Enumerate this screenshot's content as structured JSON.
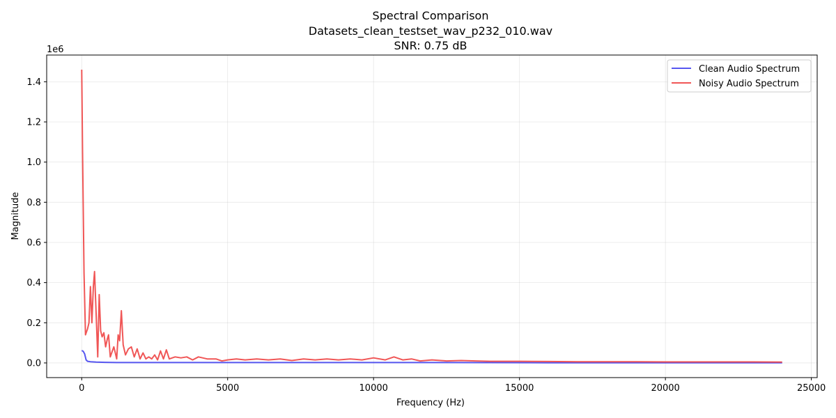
{
  "chart_data": {
    "type": "line",
    "title": [
      "Spectral Comparison",
      "Datasets_clean_testset_wav_p232_010.wav",
      "SNR: 0.75 dB"
    ],
    "xlabel": "Frequency (Hz)",
    "ylabel": "Magnitude",
    "y_offset_label": "1e6",
    "xlim": [
      -1200,
      25200
    ],
    "ylim": [
      -0.073,
      1.533
    ],
    "x_ticks": [
      0,
      5000,
      10000,
      15000,
      20000,
      25000
    ],
    "x_tick_labels": [
      "0",
      "5000",
      "10000",
      "15000",
      "20000",
      "25000"
    ],
    "y_ticks": [
      0.0,
      0.2,
      0.4,
      0.6,
      0.8,
      1.0,
      1.2,
      1.4
    ],
    "y_tick_labels": [
      "0.0",
      "0.2",
      "0.4",
      "0.6",
      "0.8",
      "1.0",
      "1.2",
      "1.4"
    ],
    "grid": true,
    "legend_position": "top-right",
    "series": [
      {
        "name": "Clean Audio Spectrum",
        "color": "#4444ee",
        "x": [
          0,
          50,
          100,
          150,
          200,
          300,
          500,
          800,
          1200,
          2000,
          4000,
          8000,
          12000,
          16000,
          20000,
          24000
        ],
        "y": [
          0.062,
          0.058,
          0.045,
          0.015,
          0.008,
          0.006,
          0.004,
          0.003,
          0.002,
          0.002,
          0.002,
          0.002,
          0.002,
          0.001,
          0.001,
          0.001
        ]
      },
      {
        "name": "Noisy Audio Spectrum",
        "color": "#ee4444",
        "x": [
          0,
          30,
          80,
          130,
          200,
          250,
          300,
          350,
          400,
          440,
          480,
          550,
          600,
          650,
          700,
          760,
          820,
          880,
          920,
          980,
          1050,
          1100,
          1150,
          1200,
          1250,
          1300,
          1360,
          1420,
          1500,
          1600,
          1700,
          1800,
          1900,
          2000,
          2100,
          2200,
          2300,
          2400,
          2500,
          2600,
          2700,
          2800,
          2900,
          3000,
          3200,
          3400,
          3600,
          3800,
          4000,
          4300,
          4600,
          4800,
          5000,
          5300,
          5600,
          6000,
          6400,
          6800,
          7200,
          7600,
          8000,
          8400,
          8800,
          9200,
          9600,
          10000,
          10400,
          10700,
          11000,
          11300,
          11600,
          12000,
          12500,
          13000,
          13500,
          14000,
          15000,
          16000,
          17000,
          18000,
          19000,
          20000,
          21000,
          22000,
          23000,
          24000
        ],
        "y": [
          1.46,
          1.05,
          0.45,
          0.14,
          0.17,
          0.2,
          0.38,
          0.2,
          0.38,
          0.455,
          0.3,
          0.03,
          0.34,
          0.16,
          0.13,
          0.15,
          0.08,
          0.12,
          0.14,
          0.03,
          0.06,
          0.08,
          0.05,
          0.02,
          0.14,
          0.11,
          0.26,
          0.09,
          0.04,
          0.07,
          0.08,
          0.03,
          0.07,
          0.02,
          0.05,
          0.02,
          0.03,
          0.02,
          0.04,
          0.015,
          0.06,
          0.02,
          0.065,
          0.02,
          0.03,
          0.025,
          0.03,
          0.015,
          0.03,
          0.02,
          0.02,
          0.01,
          0.015,
          0.02,
          0.015,
          0.02,
          0.015,
          0.02,
          0.012,
          0.02,
          0.015,
          0.02,
          0.015,
          0.02,
          0.015,
          0.025,
          0.015,
          0.03,
          0.015,
          0.02,
          0.01,
          0.015,
          0.01,
          0.012,
          0.01,
          0.008,
          0.008,
          0.007,
          0.006,
          0.006,
          0.006,
          0.005,
          0.005,
          0.005,
          0.005,
          0.004
        ]
      }
    ]
  }
}
